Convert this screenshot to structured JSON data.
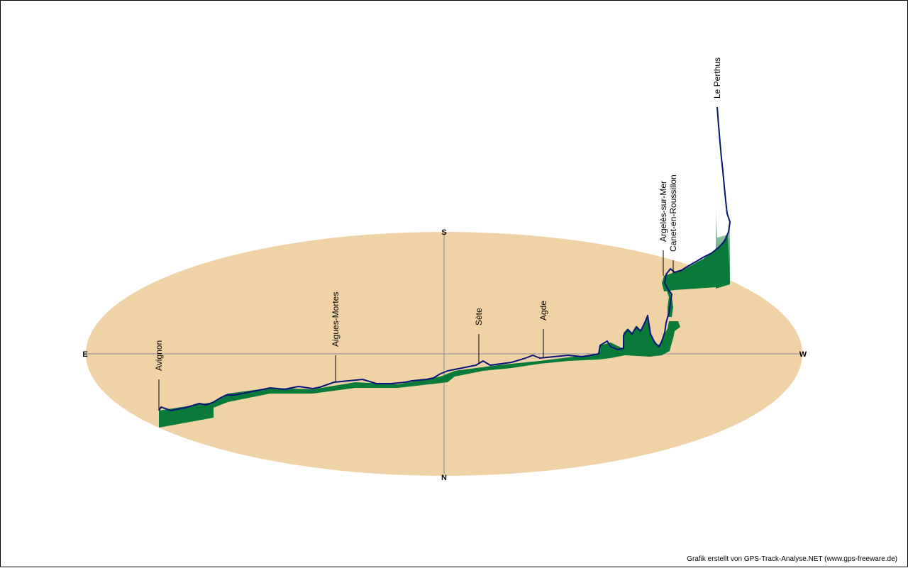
{
  "colors": {
    "ground": "#efd3a7",
    "axis": "#888899",
    "track": "#0a1478",
    "curtain_top": "#0a7a3a",
    "curtain_fade": "#d8ecdf"
  },
  "compass": {
    "north": "N",
    "south": "S",
    "east": "E",
    "west": "W"
  },
  "places": [
    {
      "name": "Avignon"
    },
    {
      "name": "Aigues-Mortes"
    },
    {
      "name": "Sète"
    },
    {
      "name": "Agde"
    },
    {
      "name": "Argelès-sur-Mer"
    },
    {
      "name": "Canet-en-Roussillon"
    },
    {
      "name": "Le Perthus"
    }
  ],
  "credit": "Grafik erstellt von GPS-Track-Analyse.NET (www.gps-freeware.de)"
}
